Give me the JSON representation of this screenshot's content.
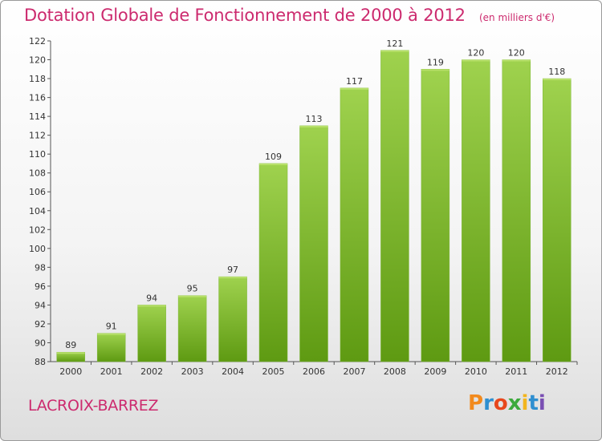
{
  "header": {
    "title": "Dotation Globale de Fonctionnement de 2000 à 2012",
    "unit": "(en milliers d'€)"
  },
  "footer": {
    "city": "LACROIX-BARREZ",
    "brand": "Proxiti"
  },
  "colors": {
    "accent": "#cc2a6e",
    "bar_top": "#9fd24e",
    "bar_bottom": "#5e9a12"
  },
  "chart_data": {
    "type": "bar",
    "title": "Dotation Globale de Fonctionnement de 2000 à 2012",
    "subtitle": "(en milliers d'€)",
    "categories": [
      "2000",
      "2001",
      "2002",
      "2003",
      "2004",
      "2005",
      "2006",
      "2007",
      "2008",
      "2009",
      "2010",
      "2011",
      "2012"
    ],
    "values": [
      89,
      91,
      94,
      95,
      97,
      109,
      113,
      117,
      121,
      119,
      120,
      120,
      118
    ],
    "ylim": [
      88,
      122
    ],
    "yticks": [
      88,
      90,
      92,
      94,
      96,
      98,
      100,
      102,
      104,
      106,
      108,
      110,
      112,
      114,
      116,
      118,
      120,
      122
    ],
    "grid": false,
    "data_labels": true
  }
}
